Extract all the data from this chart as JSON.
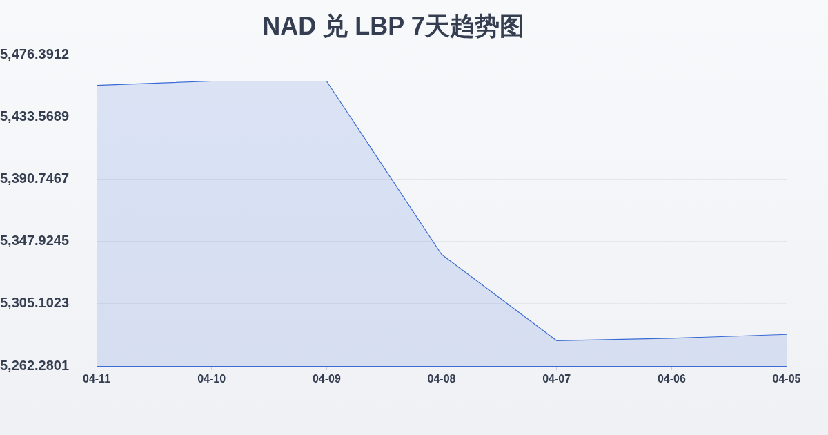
{
  "chart_data": {
    "type": "area",
    "title": "NAD 兑 LBP 7天趋势图",
    "categories": [
      "04-11",
      "04-10",
      "04-09",
      "04-08",
      "04-07",
      "04-06",
      "04-05"
    ],
    "series": [
      {
        "color": "#3a6bd4",
        "values": [
          5455.3,
          5458.2,
          5458.2,
          5339.0,
          5279.7,
          5281.3,
          5284.0
        ]
      }
    ],
    "ylim": [
      5262.2801,
      5476.3912
    ],
    "yticks": [
      {
        "value": 5262.2801,
        "label": "5,262.2801"
      },
      {
        "value": 5305.1023,
        "label": "5,305.1023"
      },
      {
        "value": 5347.9245,
        "label": "5,347.9245"
      },
      {
        "value": 5390.7467,
        "label": "5,390.7467"
      },
      {
        "value": 5433.5689,
        "label": "5,433.5689"
      },
      {
        "value": 5476.3912,
        "label": "5,476.3912"
      }
    ],
    "grid": "y",
    "marker": "none"
  }
}
